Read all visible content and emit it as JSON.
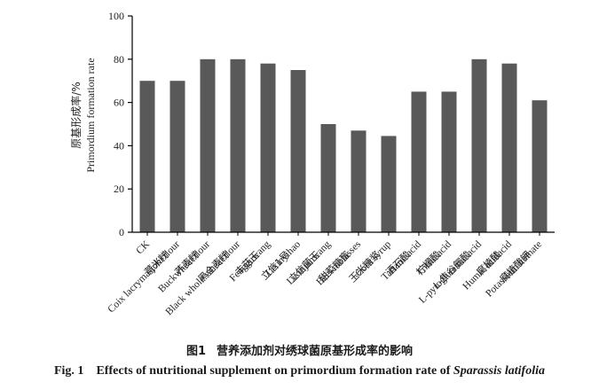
{
  "chart_data": {
    "type": "bar",
    "ylabel_cn": "原基形成率/%",
    "ylabel_en": "Primordium formation rate",
    "ylim": [
      0,
      100
    ],
    "yticks": [
      0,
      20,
      40,
      60,
      80,
      100
    ],
    "bar_color": "#595959",
    "categories": [
      {
        "cn": "",
        "en": "CK"
      },
      {
        "cn": "薏米粉",
        "en": "Coix lacryma-jobi flour"
      },
      {
        "cn": "荞麦粉",
        "en": "Buckwheat flour"
      },
      {
        "cn": "黑全麦粉",
        "en": "Black whole wheat flour"
      },
      {
        "cn": "丰菇王",
        "en": "Fengguwang"
      },
      {
        "cn": "立信1号",
        "en": "Lixinyihao"
      },
      {
        "cn": "立信菌王",
        "en": "Lixinjunwang"
      },
      {
        "cn": "甜菜糖蜜",
        "en": "Beet molasses"
      },
      {
        "cn": "玉米糖浆",
        "en": "Corn syrup"
      },
      {
        "cn": "酒石酸",
        "en": "Tartaric acid"
      },
      {
        "cn": "柠檬酸",
        "en": "Citric acid"
      },
      {
        "cn": "L-焦谷氨酸",
        "en": "L-pyroglutamic acid"
      },
      {
        "cn": "腐植酸",
        "en": "Humic acidacid"
      },
      {
        "cn": "腐植酸钾",
        "en": "Potassium humate"
      }
    ],
    "values": [
      70,
      70,
      80,
      80,
      78,
      75,
      50,
      47,
      44.5,
      65,
      65,
      80,
      78,
      61
    ]
  },
  "caption": {
    "cn_num": "图1",
    "cn_text": "营养添加剂对绣球菌原基形成率的影响",
    "en_num": "Fig. 1",
    "en_text": "Effects of nutritional supplement on primordium formation rate of",
    "en_species": "Sparassis latifolia"
  }
}
